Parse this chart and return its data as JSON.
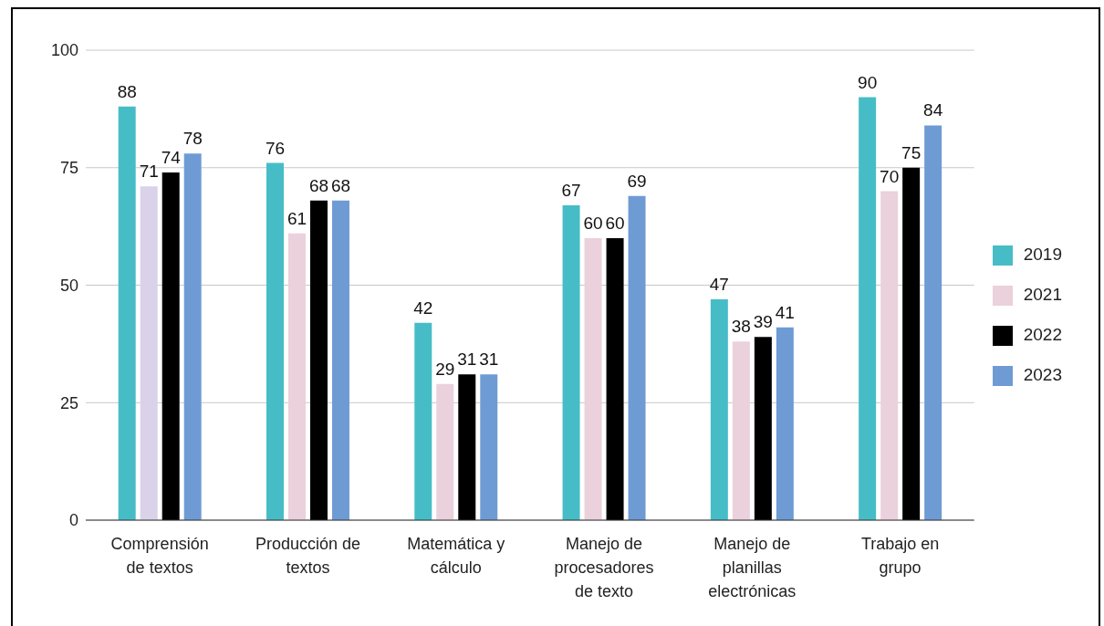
{
  "chart_data": {
    "type": "bar",
    "categories": [
      "Comprensión de textos",
      "Producción de textos",
      "Matemática y cálculo",
      "Manejo de procesadores de texto",
      "Manejo de planillas electrónicas",
      "Trabajo en grupo"
    ],
    "series": [
      {
        "name": "2019",
        "color": "#46bdc6",
        "values": [
          88,
          76,
          42,
          67,
          47,
          90
        ]
      },
      {
        "name": "2021",
        "color": "#ead1dc",
        "colors": [
          "#d9d2e9",
          "#ead1dc",
          "#ead1dc",
          "#ead1dc",
          "#ead1dc",
          "#ead1dc"
        ],
        "values": [
          71,
          61,
          29,
          60,
          38,
          70
        ]
      },
      {
        "name": "2022",
        "color": "#000000",
        "values": [
          74,
          68,
          31,
          60,
          39,
          75
        ]
      },
      {
        "name": "2023",
        "color": "#6f9bd4",
        "values": [
          78,
          68,
          31,
          69,
          41,
          84
        ]
      }
    ],
    "ylim": [
      0,
      100
    ],
    "yticks": [
      0,
      25,
      50,
      75,
      100
    ],
    "grid": "y",
    "legend": "right",
    "data_labels": true
  }
}
